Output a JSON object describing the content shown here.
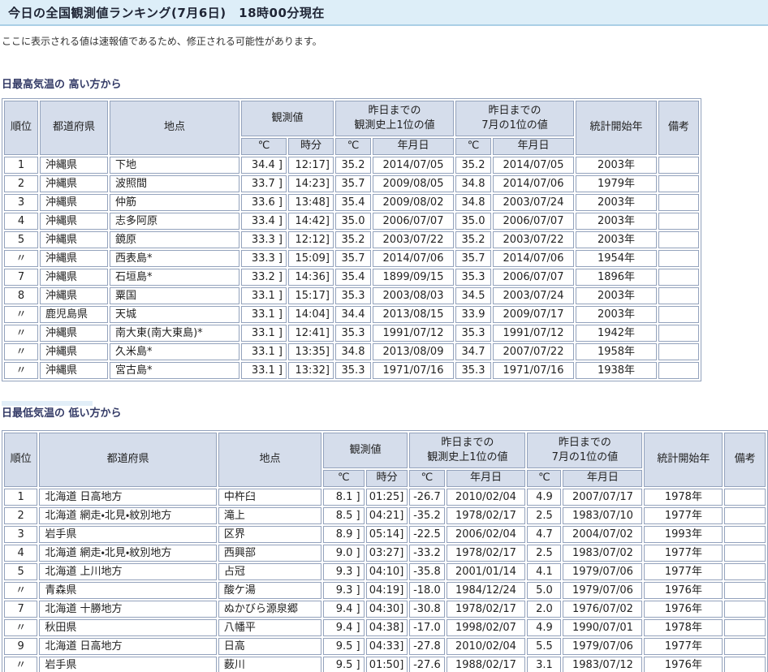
{
  "colors": {
    "title_bar_bg": "#ddeef8",
    "title_bar_border": "#aacfe6",
    "header_cell_bg": "#d5ddeb",
    "cell_border": "#93a2bc",
    "section_heading_text": "#333a66"
  },
  "page": {
    "title": "今日の全国観測値ランキング(7月6日)　18時00分現在",
    "notice": "ここに表示される値は速報値であるため、修正される可能性があります。"
  },
  "table_header": {
    "rank": "順位",
    "prefecture": "都道府県",
    "station": "地点",
    "observed": "観測値",
    "record_until_yesterday": "昨日までの\n観測史上1位の値",
    "july_record_until_yesterday": "昨日までの\n7月の1位の値",
    "stats_start_year": "統計開始年",
    "remarks": "備考",
    "celsius": "℃",
    "hour_minute": "時分",
    "date": "年月日"
  },
  "tables": [
    {
      "heading": "日最高気温の 高い方から",
      "rows": [
        [
          "1",
          "沖縄県",
          "下地",
          "34.4 ]",
          "12:17]",
          "35.2",
          "2014/07/05",
          "35.2",
          "2014/07/05",
          "2003年",
          ""
        ],
        [
          "2",
          "沖縄県",
          "波照間",
          "33.7 ]",
          "14:23]",
          "35.7",
          "2009/08/05",
          "34.8",
          "2014/07/06",
          "1979年",
          ""
        ],
        [
          "3",
          "沖縄県",
          "仲筋",
          "33.6 ]",
          "13:48]",
          "35.4",
          "2009/08/02",
          "34.8",
          "2003/07/24",
          "2003年",
          ""
        ],
        [
          "4",
          "沖縄県",
          "志多阿原",
          "33.4 ]",
          "14:42]",
          "35.0",
          "2006/07/07",
          "35.0",
          "2006/07/07",
          "2003年",
          ""
        ],
        [
          "5",
          "沖縄県",
          "鏡原",
          "33.3 ]",
          "12:12]",
          "35.2",
          "2003/07/22",
          "35.2",
          "2003/07/22",
          "2003年",
          ""
        ],
        [
          "〃",
          "沖縄県",
          "西表島*",
          "33.3 ]",
          "15:09]",
          "35.7",
          "2014/07/06",
          "35.7",
          "2014/07/06",
          "1954年",
          ""
        ],
        [
          "7",
          "沖縄県",
          "石垣島*",
          "33.2 ]",
          "14:36]",
          "35.4",
          "1899/09/15",
          "35.3",
          "2006/07/07",
          "1896年",
          ""
        ],
        [
          "8",
          "沖縄県",
          "粟国",
          "33.1 ]",
          "15:17]",
          "35.3",
          "2003/08/03",
          "34.5",
          "2003/07/24",
          "2003年",
          ""
        ],
        [
          "〃",
          "鹿児島県",
          "天城",
          "33.1 ]",
          "14:04]",
          "34.4",
          "2013/08/15",
          "33.9",
          "2009/07/17",
          "2003年",
          ""
        ],
        [
          "〃",
          "沖縄県",
          "南大東(南大東島)*",
          "33.1 ]",
          "12:41]",
          "35.3",
          "1991/07/12",
          "35.3",
          "1991/07/12",
          "1942年",
          ""
        ],
        [
          "〃",
          "沖縄県",
          "久米島*",
          "33.1 ]",
          "13:35]",
          "34.8",
          "2013/08/09",
          "34.7",
          "2007/07/22",
          "1958年",
          ""
        ],
        [
          "〃",
          "沖縄県",
          "宮古島*",
          "33.1 ]",
          "13:32]",
          "35.3",
          "1971/07/16",
          "35.3",
          "1971/07/16",
          "1938年",
          ""
        ]
      ]
    },
    {
      "heading": "日最低気温の 低い方から",
      "rows": [
        [
          "1",
          "北海道 日高地方",
          "中杵臼",
          "8.1 ]",
          "01:25]",
          "-26.7",
          "2010/02/04",
          "4.9",
          "2007/07/17",
          "1978年",
          ""
        ],
        [
          "2",
          "北海道 網走・北見・紋別地方",
          "滝上",
          "8.5 ]",
          "04:21]",
          "-35.2",
          "1978/02/17",
          "2.5",
          "1983/07/10",
          "1977年",
          ""
        ],
        [
          "3",
          "岩手県",
          "区界",
          "8.9 ]",
          "05:14]",
          "-22.5",
          "2006/02/04",
          "4.7",
          "2004/07/02",
          "1993年",
          ""
        ],
        [
          "4",
          "北海道 網走・北見・紋別地方",
          "西興部",
          "9.0 ]",
          "03:27]",
          "-33.2",
          "1978/02/17",
          "2.5",
          "1983/07/02",
          "1977年",
          ""
        ],
        [
          "5",
          "北海道 上川地方",
          "占冠",
          "9.3 ]",
          "04:10]",
          "-35.8",
          "2001/01/14",
          "4.1",
          "1979/07/06",
          "1977年",
          ""
        ],
        [
          "〃",
          "青森県",
          "酸ケ湯",
          "9.3 ]",
          "04:19]",
          "-18.0",
          "1984/12/24",
          "5.0",
          "1979/07/06",
          "1976年",
          ""
        ],
        [
          "7",
          "北海道 十勝地方",
          "ぬかびら源泉郷",
          "9.4 ]",
          "04:30]",
          "-30.8",
          "1978/02/17",
          "2.0",
          "1976/07/02",
          "1976年",
          ""
        ],
        [
          "〃",
          "秋田県",
          "八幡平",
          "9.4 ]",
          "04:38]",
          "-17.0",
          "1998/02/07",
          "4.9",
          "1990/07/01",
          "1978年",
          ""
        ],
        [
          "9",
          "北海道 日高地方",
          "日高",
          "9.5 ]",
          "04:33]",
          "-27.8",
          "2010/02/04",
          "5.5",
          "1979/07/06",
          "1977年",
          ""
        ],
        [
          "〃",
          "岩手県",
          "薮川",
          "9.5 ]",
          "01:50]",
          "-27.6",
          "1988/02/17",
          "3.1",
          "1983/07/12",
          "1976年",
          ""
        ]
      ]
    }
  ]
}
